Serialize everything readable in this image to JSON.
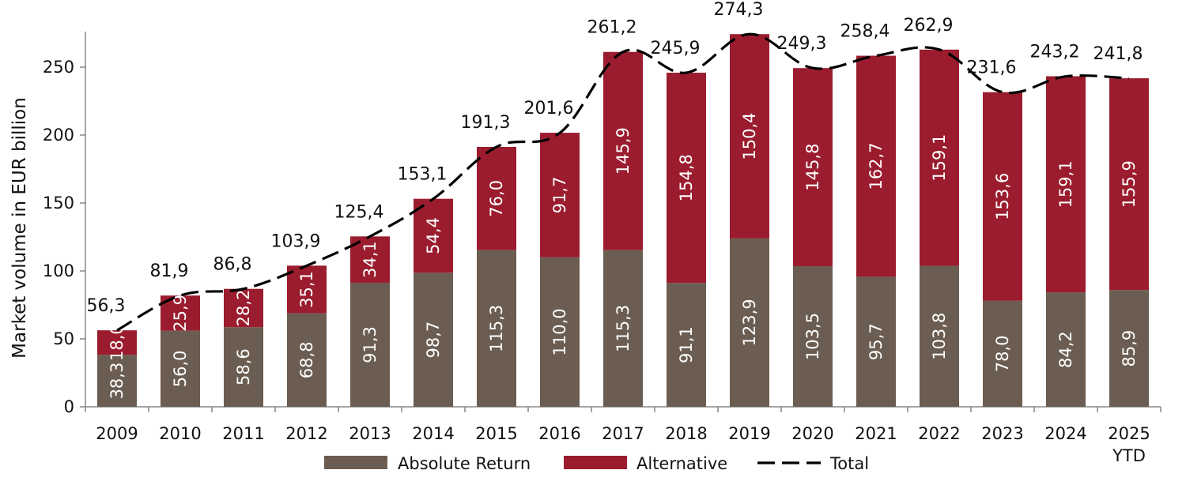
{
  "chart_data": {
    "type": "bar",
    "stacked": true,
    "title": "",
    "xlabel": "",
    "ylabel": "Market volume in EUR billion",
    "ylim": [
      0,
      275
    ],
    "yticks": [
      "0",
      "50",
      "100",
      "150",
      "200",
      "250"
    ],
    "categories": [
      "2009",
      "2010",
      "2011",
      "2012",
      "2013",
      "2014",
      "2015",
      "2016",
      "2017",
      "2018",
      "2019",
      "2020",
      "2021",
      "2022",
      "2023",
      "2024",
      "2025"
    ],
    "category_sublabels": [
      "",
      "",
      "",
      "",
      "",
      "",
      "",
      "",
      "",
      "",
      "",
      "",
      "",
      "",
      "",
      "",
      "YTD"
    ],
    "series": [
      {
        "name": "Absolute Return",
        "color": "#6b5d51",
        "values": [
          38.3,
          56.0,
          58.6,
          68.8,
          91.3,
          98.7,
          115.3,
          110.0,
          115.3,
          91.1,
          123.9,
          103.5,
          95.7,
          103.8,
          78.0,
          84.2,
          85.9
        ],
        "labels": [
          "38,3",
          "56,0",
          "58,6",
          "68,8",
          "91,3",
          "98,7",
          "115,3",
          "110,0",
          "115,3",
          "91,1",
          "123,9",
          "103,5",
          "95,7",
          "103,8",
          "78,0",
          "84,2",
          "85,9"
        ]
      },
      {
        "name": "Alternative",
        "color": "#9b1c2e",
        "values": [
          18.0,
          25.9,
          28.2,
          35.1,
          34.1,
          54.4,
          76.0,
          91.7,
          145.9,
          154.8,
          150.4,
          145.8,
          162.7,
          159.1,
          153.6,
          159.1,
          155.9
        ],
        "labels": [
          "18,0",
          "25,9",
          "28,2",
          "35,1",
          "34,1",
          "54,4",
          "76,0",
          "91,7",
          "145,9",
          "154,8",
          "150,4",
          "145,8",
          "162,7",
          "159,1",
          "153,6",
          "159,1",
          "155,9"
        ]
      }
    ],
    "total": {
      "name": "Total",
      "style": "dashed",
      "color": "#000000",
      "values": [
        56.3,
        81.9,
        86.8,
        103.9,
        125.4,
        153.1,
        191.3,
        201.6,
        261.2,
        245.9,
        274.3,
        249.3,
        258.4,
        262.9,
        231.6,
        243.2,
        241.8
      ],
      "labels": [
        "56,3",
        "81,9",
        "86,8",
        "103,9",
        "125,4",
        "153,1",
        "191,3",
        "201,6",
        "261,2",
        "245,9",
        "274,3",
        "249,3",
        "258,4",
        "262,9",
        "231,6",
        "243,2",
        "241,8"
      ]
    },
    "legend": {
      "position": "bottom",
      "entries": [
        "Absolute Return",
        "Alternative",
        "Total"
      ]
    },
    "grid": false
  }
}
